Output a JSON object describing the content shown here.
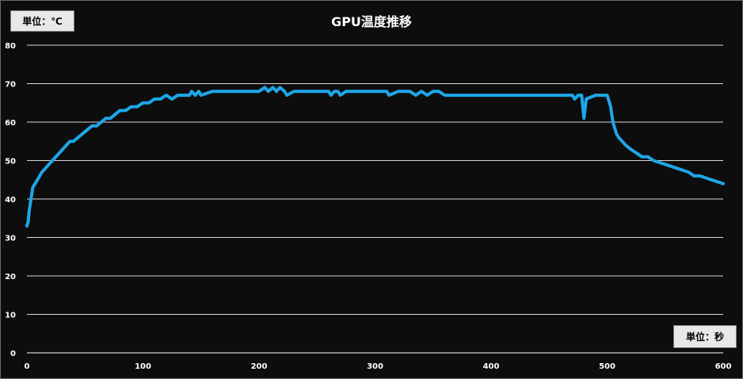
{
  "chart_data": {
    "type": "line",
    "title": "GPU温度推移",
    "y_unit_label": "単位：℃",
    "x_unit_label": "単位：秒",
    "xlim": [
      0,
      600
    ],
    "ylim": [
      0,
      80
    ],
    "x_ticks": [
      0,
      100,
      200,
      300,
      400,
      500,
      600
    ],
    "y_ticks": [
      0,
      10,
      20,
      30,
      40,
      50,
      60,
      70,
      80
    ],
    "grid": "horizontal",
    "line_color": "#1ea6e8",
    "series": [
      {
        "x": [
          0,
          1,
          2,
          3,
          4,
          5,
          7,
          9,
          11,
          13,
          16,
          19,
          22,
          25,
          28,
          31,
          34,
          37,
          40,
          44,
          48,
          52,
          56,
          60,
          64,
          68,
          72,
          76,
          80,
          85,
          90,
          95,
          100,
          105,
          110,
          115,
          120,
          125,
          130,
          135,
          140,
          142,
          145,
          148,
          150,
          160,
          180,
          200,
          205,
          208,
          212,
          215,
          218,
          222,
          224,
          230,
          250,
          260,
          262,
          265,
          268,
          270,
          275,
          280,
          300,
          310,
          312,
          320,
          330,
          335,
          340,
          345,
          350,
          355,
          360,
          400,
          450,
          470,
          472,
          475,
          478,
          480,
          482,
          490,
          500,
          503,
          505,
          508,
          510,
          513,
          516,
          520,
          525,
          530,
          535,
          540,
          550,
          560,
          570,
          575,
          580,
          590,
          600
        ],
        "y": [
          33,
          34,
          37,
          39,
          41,
          43,
          44,
          45,
          46,
          47,
          48,
          49,
          50,
          51,
          52,
          53,
          54,
          55,
          55,
          56,
          57,
          58,
          59,
          59,
          60,
          61,
          61,
          62,
          63,
          63,
          64,
          64,
          65,
          65,
          66,
          66,
          67,
          66,
          67,
          67,
          67,
          68,
          67,
          68,
          67,
          68,
          68,
          68,
          69,
          68,
          69,
          68,
          69,
          68,
          67,
          68,
          68,
          68,
          67,
          68,
          68,
          67,
          68,
          68,
          68,
          68,
          67,
          68,
          68,
          67,
          68,
          67,
          68,
          68,
          67,
          67,
          67,
          67,
          66,
          67,
          67,
          61,
          66,
          67,
          67,
          64,
          60,
          57,
          56,
          55,
          54,
          53,
          52,
          51,
          51,
          50,
          49,
          48,
          47,
          46,
          46,
          45,
          44
        ]
      }
    ]
  }
}
